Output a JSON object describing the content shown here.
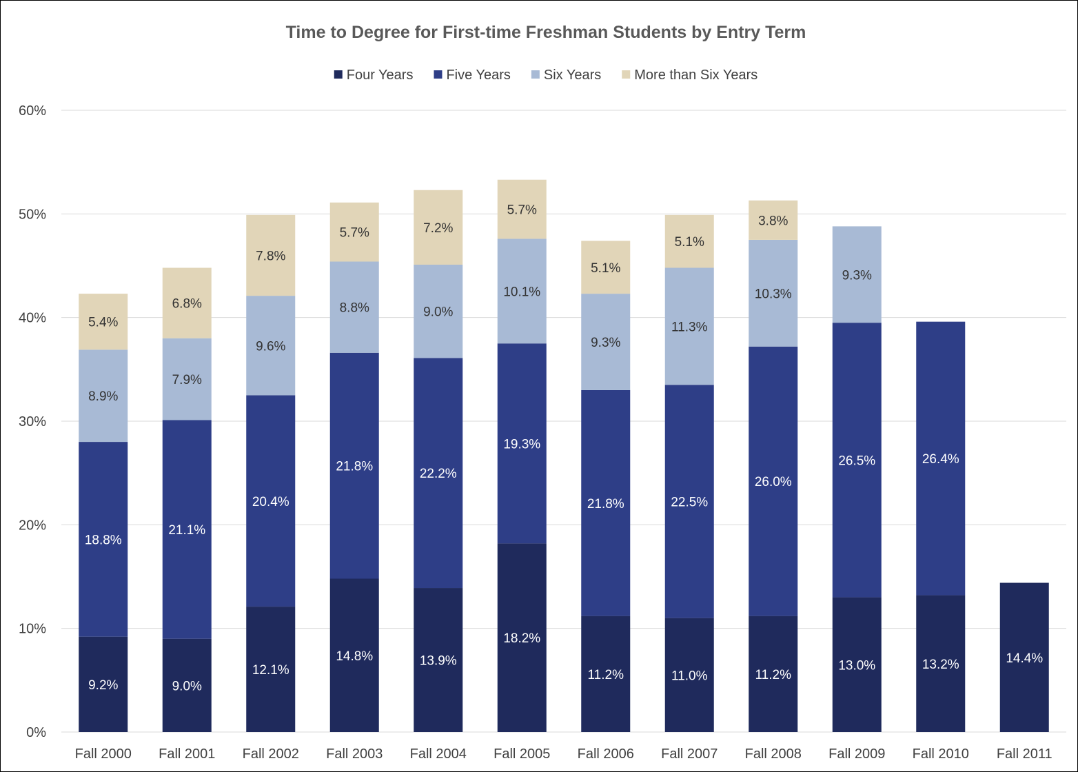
{
  "chart_data": {
    "type": "bar",
    "stacked": true,
    "title": "Time to Degree for First-time Freshman Students by Entry Term",
    "categories": [
      "Fall 2000",
      "Fall 2001",
      "Fall 2002",
      "Fall 2003",
      "Fall 2004",
      "Fall 2005",
      "Fall 2006",
      "Fall 2007",
      "Fall 2008",
      "Fall 2009",
      "Fall 2010",
      "Fall 2011"
    ],
    "series": [
      {
        "name": "Four Years",
        "color": "#1f2a5c",
        "label_color": "#ffffff",
        "values": [
          9.2,
          9.0,
          12.1,
          14.8,
          13.9,
          18.2,
          11.2,
          11.0,
          11.2,
          13.0,
          13.2,
          14.4
        ]
      },
      {
        "name": "Five Years",
        "color": "#2e3e87",
        "label_color": "#ffffff",
        "values": [
          18.8,
          21.1,
          20.4,
          21.8,
          22.2,
          19.3,
          21.8,
          22.5,
          26.0,
          26.5,
          26.4,
          null
        ]
      },
      {
        "name": "Six Years",
        "color": "#a8bad5",
        "label_color": "#333333",
        "values": [
          8.9,
          7.9,
          9.6,
          8.8,
          9.0,
          10.1,
          9.3,
          11.3,
          10.3,
          9.3,
          null,
          null
        ]
      },
      {
        "name": "More than Six Years",
        "color": "#e1d5b8",
        "label_color": "#333333",
        "values": [
          5.4,
          6.8,
          7.8,
          5.7,
          7.2,
          5.7,
          5.1,
          5.1,
          3.8,
          null,
          null,
          null
        ]
      }
    ],
    "ylim": [
      0,
      60
    ],
    "y_ticks": [
      0,
      10,
      20,
      30,
      40,
      50,
      60
    ],
    "y_tick_format": "percent",
    "grid": true,
    "legend_position": "top-center",
    "gridline_color": "#d9d9d9"
  }
}
